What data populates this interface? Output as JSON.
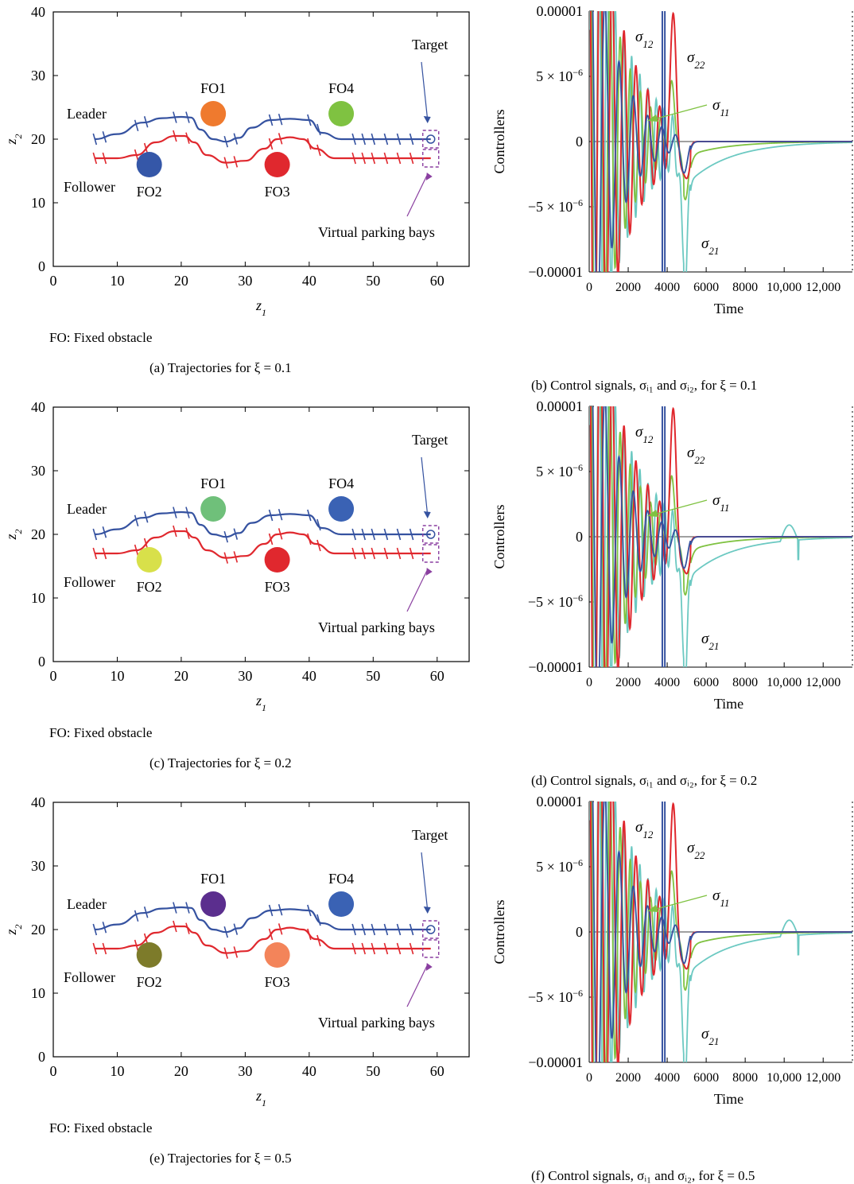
{
  "figure": {
    "rows": [
      {
        "traj": {
          "caption": "(a)  Trajectories for ξ = 0.1",
          "fo_note": "FO: Fixed obstacle",
          "fo_colors": [
            "#ef7a2e",
            "#3557a8",
            "#e0282e",
            "#7fc241"
          ]
        },
        "ctrl": {
          "caption": "(b)  Control signals, σᵢ₁ and σᵢ₂, for ξ = 0.1",
          "tail_bump": false
        }
      },
      {
        "traj": {
          "caption": "(c)  Trajectories for ξ = 0.2",
          "fo_note": "FO: Fixed obstacle",
          "fo_colors": [
            "#6fc07a",
            "#d8e04a",
            "#e0282e",
            "#3a62b4"
          ]
        },
        "ctrl": {
          "caption": "(d)  Control signals, σᵢ₁ and σᵢ₂, for ξ = 0.2",
          "tail_bump": true
        }
      },
      {
        "traj": {
          "caption": "(e)  Trajectories for ξ = 0.5",
          "fo_note": "FO: Fixed obstacle",
          "fo_colors": [
            "#5b2e8e",
            "#7d7b2a",
            "#f3845a",
            "#3a62b4"
          ]
        },
        "ctrl": {
          "caption": "(f)  Control signals, σᵢ₁ and σᵢ₂, for ξ = 0.5",
          "tail_bump": true
        }
      }
    ]
  },
  "chart_data": [
    {
      "type": "line",
      "kind": "trajectory",
      "xlabel": "z",
      "xlabel_sub": "1",
      "ylabel": "z",
      "ylabel_sub": "2",
      "xlim": [
        0,
        65
      ],
      "ylim": [
        0,
        40
      ],
      "x_ticks": [
        0,
        10,
        20,
        30,
        40,
        50,
        60
      ],
      "y_ticks": [
        0,
        10,
        20,
        30,
        40
      ],
      "series": [
        {
          "name": "Leader",
          "color": "#3552a0",
          "x": [
            6.5,
            10,
            14,
            17,
            20,
            21.5,
            23,
            25,
            27,
            29,
            31,
            34,
            37,
            40,
            42,
            45,
            50,
            55,
            59
          ],
          "y": [
            20,
            20.8,
            22.6,
            23.3,
            23.5,
            23.4,
            21.5,
            20,
            19.6,
            20.2,
            21.8,
            23,
            23.2,
            23,
            21,
            20,
            20,
            20,
            20
          ]
        },
        {
          "name": "Follower",
          "color": "#e0282e",
          "x": [
            6.5,
            10,
            13,
            16,
            19,
            20.5,
            22,
            24,
            27,
            30,
            33,
            35,
            37,
            39,
            41,
            44,
            50,
            55,
            59
          ],
          "y": [
            17,
            17,
            17.5,
            19.5,
            20.5,
            20.5,
            19.5,
            17.5,
            16.3,
            16.6,
            18.5,
            20,
            20.3,
            20,
            18.5,
            17,
            17,
            17,
            17
          ]
        }
      ],
      "obstacles": [
        {
          "label": "FO1",
          "x": 25,
          "y": 24
        },
        {
          "label": "FO2",
          "x": 15,
          "y": 16
        },
        {
          "label": "FO3",
          "x": 35,
          "y": 16
        },
        {
          "label": "FO4",
          "x": 45,
          "y": 24
        }
      ],
      "annotations": {
        "leader": "Leader",
        "follower": "Follower",
        "target": "Target",
        "bays": "Virtual parking bays"
      },
      "target": {
        "x": 59,
        "y": 20
      }
    },
    {
      "type": "line",
      "kind": "controllers",
      "xlabel": "Time",
      "ylabel": "Controllers",
      "xlim": [
        0,
        13500
      ],
      "ylim": [
        -1e-05,
        1e-05
      ],
      "x_ticks": [
        0,
        2000,
        4000,
        6000,
        8000,
        10000,
        12000
      ],
      "x_tick_labels": [
        "0",
        "2000",
        "4000",
        "6000",
        "8000",
        "10,000",
        "12,000"
      ],
      "y_tick_labels": [
        "0.00001",
        "5 × 10",
        "0",
        "−5 × 10",
        "−0.00001"
      ],
      "y_tick_exp": "−6",
      "series": [
        {
          "name": "σ",
          "sub": "12",
          "color": "#3552a0"
        },
        {
          "name": "σ",
          "sub": "22",
          "color": "#e0282e"
        },
        {
          "name": "σ",
          "sub": "11",
          "color": "#7fc241"
        },
        {
          "name": "σ",
          "sub": "21",
          "color": "#6cc9c2"
        }
      ]
    }
  ]
}
